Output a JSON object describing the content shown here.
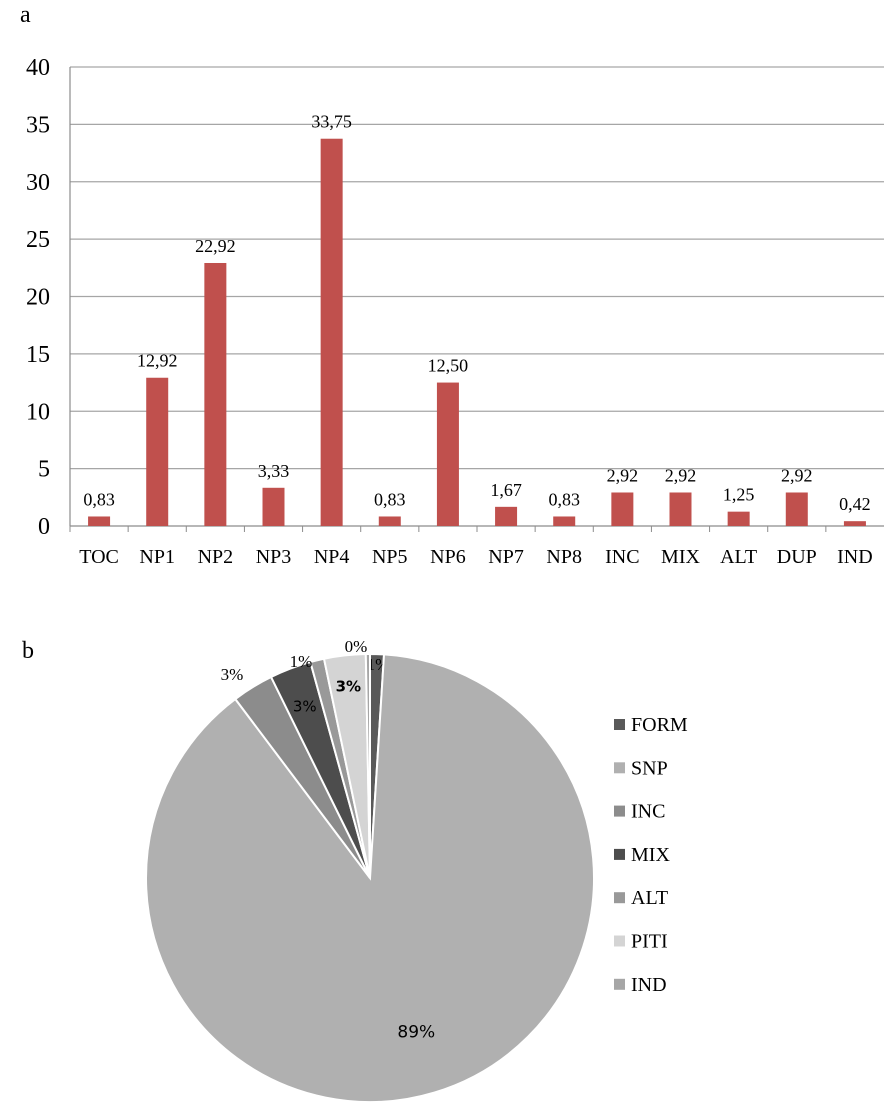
{
  "panel_labels": {
    "a": "a",
    "b": "b"
  },
  "chart_data": [
    {
      "type": "bar",
      "categories": [
        "TOC",
        "NP1",
        "NP2",
        "NP3",
        "NP4",
        "NP5",
        "NP6",
        "NP7",
        "NP8",
        "INC",
        "MIX",
        "ALT",
        "DUP",
        "IND"
      ],
      "values": [
        0.83,
        12.92,
        22.92,
        3.33,
        33.75,
        0.83,
        12.5,
        1.67,
        0.83,
        2.92,
        2.92,
        1.25,
        2.92,
        0.42
      ],
      "data_labels": [
        "0,83",
        "12,92",
        "22,92",
        "3,33",
        "33,75",
        "0,83",
        "12,50",
        "1,67",
        "0,83",
        "2,92",
        "2,92",
        "1,25",
        "2,92",
        "0,42"
      ],
      "ylim": [
        0,
        40
      ],
      "yticks": [
        "0",
        "5",
        "10",
        "15",
        "20",
        "25",
        "30",
        "35",
        "40"
      ],
      "grid": true,
      "bar_color": "#c0504d",
      "title": "",
      "xlabel": "",
      "ylabel": ""
    },
    {
      "type": "pie",
      "slices": [
        {
          "label": "FORM",
          "value": 1,
          "pct_label": "1%",
          "color": "#595959"
        },
        {
          "label": "SNP",
          "value": 89,
          "pct_label": "89%",
          "color": "#b0b0b0"
        },
        {
          "label": "INC",
          "value": 3,
          "pct_label": "3%",
          "color": "#8c8c8c"
        },
        {
          "label": "MIX",
          "value": 3,
          "pct_label": "3%",
          "color": "#4d4d4d"
        },
        {
          "label": "ALT",
          "value": 1,
          "pct_label": "1%",
          "color": "#999999"
        },
        {
          "label": "PITI",
          "value": 3,
          "pct_label": "3%",
          "color": "#d4d4d4"
        },
        {
          "label": "IND",
          "value": 0.3,
          "pct_label": "0%",
          "color": "#a6a6a6"
        }
      ],
      "legend": [
        "FORM",
        "SNP",
        "INC",
        "MIX",
        "ALT",
        "PITI",
        "IND"
      ],
      "legend_position": "right",
      "title": ""
    }
  ]
}
